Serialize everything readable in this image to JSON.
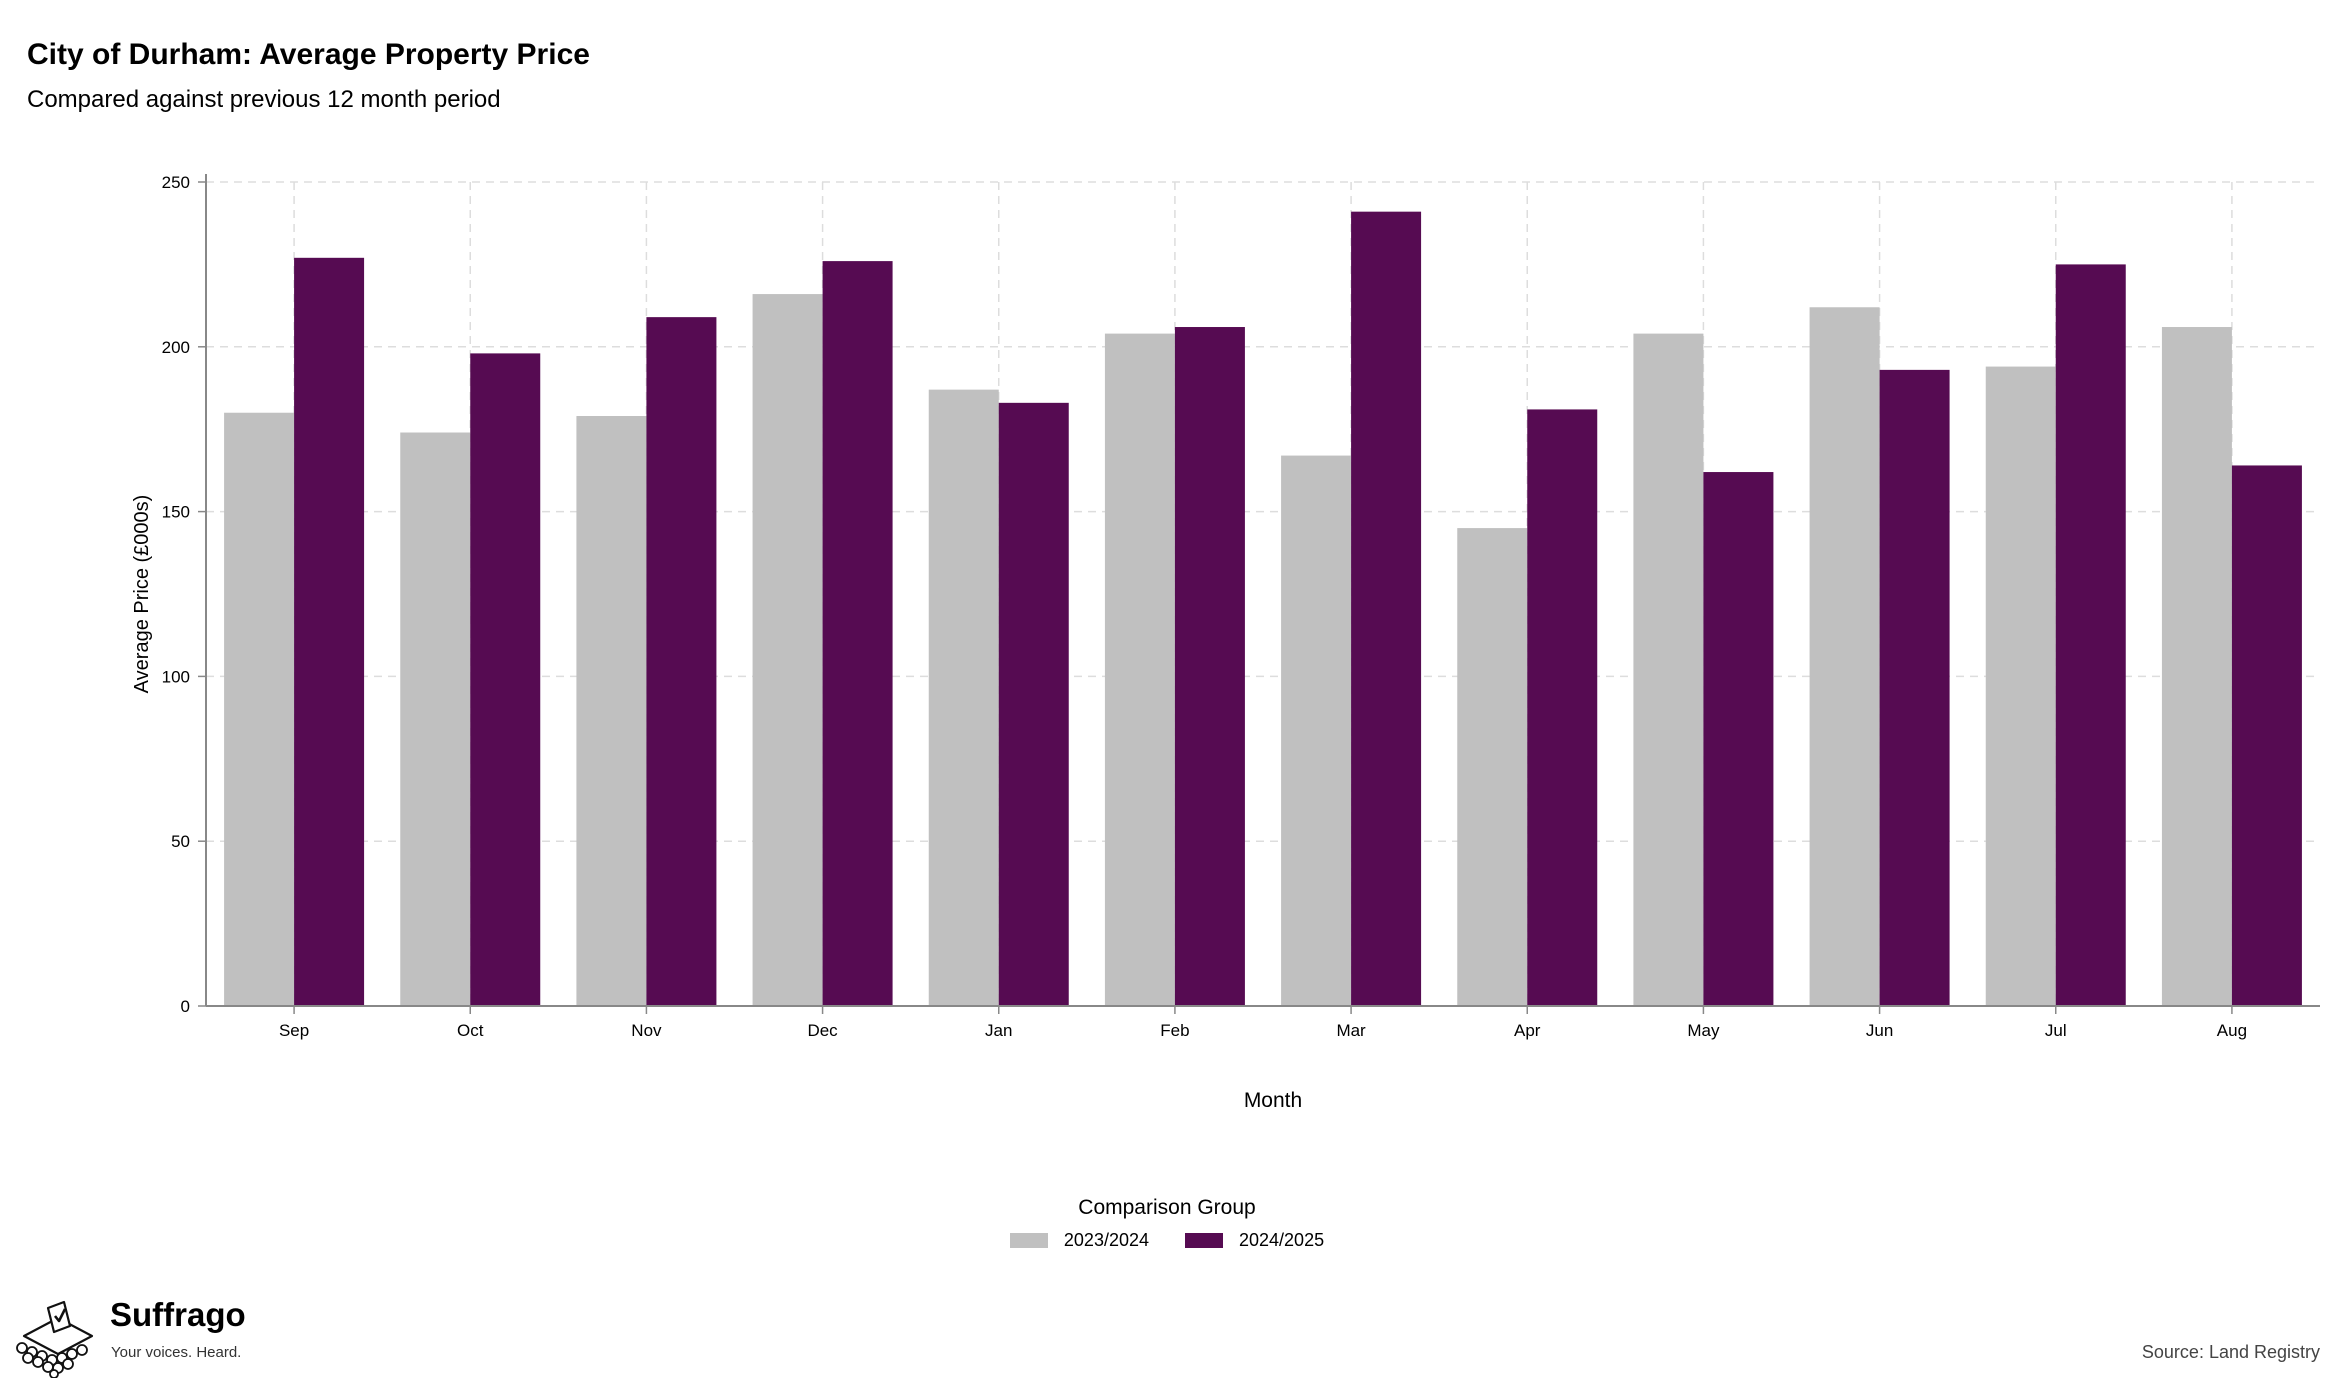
{
  "title": "City of Durham: Average Property Price",
  "subtitle": "Compared against previous 12 month period",
  "source": "Source: Land Registry",
  "logo": {
    "name": "Suffrago",
    "tagline": "Your voices. Heard."
  },
  "legend": {
    "title": "Comparison Group"
  },
  "colors": {
    "series_a": "#c0c0c0",
    "series_b": "#560b52",
    "grid": "#dddddd",
    "axis": "#888888"
  },
  "chart_data": {
    "type": "bar",
    "xlabel": "Month",
    "ylabel": "Average Price (£000s)",
    "ylim": [
      0,
      250
    ],
    "yticks": [
      0,
      50,
      100,
      150,
      200,
      250
    ],
    "grid": true,
    "legend_position": "bottom",
    "categories": [
      "Sep",
      "Oct",
      "Nov",
      "Dec",
      "Jan",
      "Feb",
      "Mar",
      "Apr",
      "May",
      "Jun",
      "Jul",
      "Aug"
    ],
    "series": [
      {
        "name": "2023/2024",
        "values": [
          180,
          174,
          179,
          216,
          187,
          204,
          167,
          145,
          204,
          212,
          194,
          206
        ]
      },
      {
        "name": "2024/2025",
        "values": [
          227,
          198,
          209,
          226,
          183,
          206,
          241,
          181,
          162,
          193,
          225,
          164
        ]
      }
    ]
  }
}
